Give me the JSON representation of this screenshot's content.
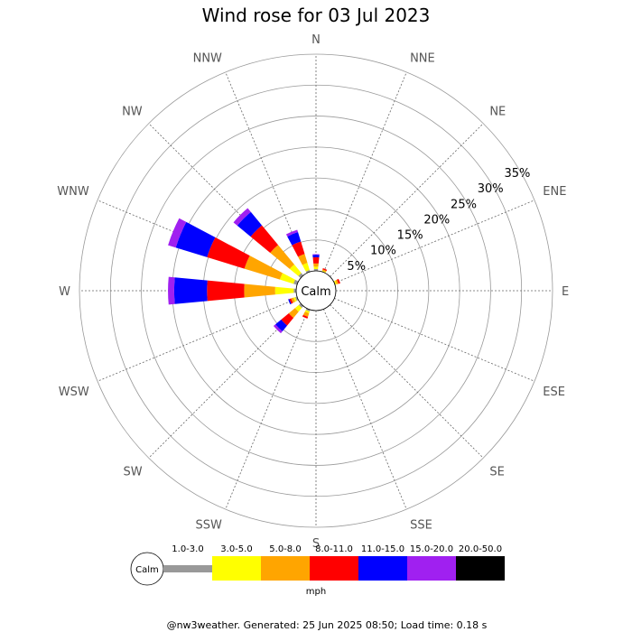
{
  "chart_data": {
    "type": "wind-rose",
    "title": "Wind rose for 03 Jul 2023",
    "directions": [
      "N",
      "NNE",
      "NE",
      "ENE",
      "E",
      "ESE",
      "SE",
      "SSE",
      "S",
      "SSW",
      "SW",
      "WSW",
      "W",
      "WNW",
      "NW",
      "NNW"
    ],
    "radial_ticks": [
      "5%",
      "10%",
      "15%",
      "20%",
      "25%",
      "30%",
      "35%"
    ],
    "radial_max": 35,
    "calm_label": "Calm",
    "speed_bins": [
      {
        "label": "1.0-3.0",
        "color": "#999999"
      },
      {
        "label": "3.0-5.0",
        "color": "#ffff00"
      },
      {
        "label": "5.0-8.0",
        "color": "#ffa500"
      },
      {
        "label": "8.0-11.0",
        "color": "#ff0000"
      },
      {
        "label": "11.0-15.0",
        "color": "#0000ff"
      },
      {
        "label": "15.0-20.0",
        "color": "#a020f0"
      },
      {
        "label": "20.0-50.0",
        "color": "#000000"
      }
    ],
    "units": "mph",
    "series": [
      {
        "direction": "N",
        "values": [
          0.3,
          0.4,
          0.5,
          1.0,
          0.4,
          0.1,
          0
        ]
      },
      {
        "direction": "NNE",
        "values": [
          0.1,
          0.1,
          0.2,
          0.2,
          0,
          0,
          0
        ]
      },
      {
        "direction": "ENE",
        "values": [
          0.1,
          0.2,
          0.3,
          0.3,
          0,
          0,
          0
        ]
      },
      {
        "direction": "SSW",
        "values": [
          0.3,
          0.3,
          0.6,
          0.3,
          0,
          0,
          0
        ]
      },
      {
        "direction": "SW",
        "values": [
          0.4,
          0.8,
          1.3,
          1.6,
          1.2,
          0.4,
          0
        ]
      },
      {
        "direction": "WSW",
        "values": [
          0.3,
          0.3,
          0.4,
          0.3,
          0.2,
          0,
          0
        ]
      },
      {
        "direction": "W",
        "values": [
          0.4,
          3.0,
          5.0,
          6.0,
          5.3,
          1.0,
          0
        ]
      },
      {
        "direction": "WNW",
        "values": [
          0.6,
          2.3,
          6.0,
          6.3,
          5.3,
          1.3,
          0
        ]
      },
      {
        "direction": "NW",
        "values": [
          0.5,
          1.8,
          4.1,
          4.1,
          2.8,
          0.8,
          0
        ]
      },
      {
        "direction": "NNW",
        "values": [
          0.3,
          1.2,
          1.5,
          2.1,
          1.6,
          0.4,
          0
        ]
      }
    ],
    "grid": true,
    "legend_position": "bottom"
  },
  "footer": "@nw3weather. Generated: 25 Jun 2025 08:50; Load time: 0.18 s"
}
